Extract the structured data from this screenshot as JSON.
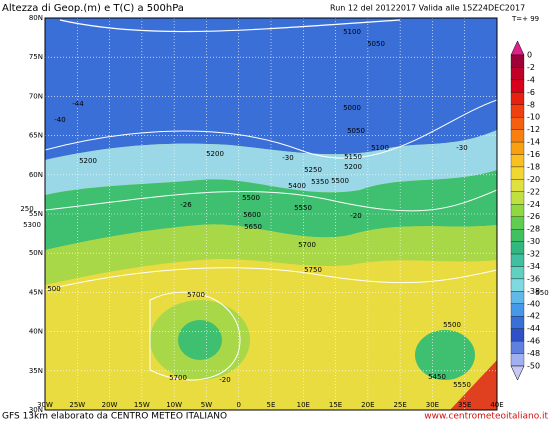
{
  "header": {
    "title": "Altezza di Geop.(m) e T(C) a 500hPa",
    "run": "Run 12 del 20122017  Valida alle 15Z24DEC2017",
    "step": "T=+ 99"
  },
  "map": {
    "lat_labels": [
      "80N",
      "75N",
      "70N",
      "65N",
      "60N",
      "55N",
      "50N",
      "45N",
      "40N",
      "35N",
      "30N"
    ],
    "lon_labels": [
      "30W",
      "25W",
      "20W",
      "15W",
      "10W",
      "5W",
      "0",
      "5E",
      "10E",
      "15E",
      "20E",
      "25E",
      "30E",
      "35E",
      "40E"
    ],
    "contour_labels": [
      "5100",
      "5050",
      "5000",
      "5050",
      "5100",
      "5150",
      "5200",
      "5200",
      "5200",
      "5250",
      "5400",
      "5350",
      "5500",
      "5500",
      "5550",
      "5600",
      "5650",
      "5700",
      "5750",
      "5300",
      "250",
      "500",
      "5700",
      "5700",
      "5500",
      "5450",
      "5550",
      "550",
      "-44",
      "-40",
      "-30",
      "-26",
      "-20",
      "-30",
      "-20"
    ]
  },
  "colorbar": {
    "labels": [
      0,
      -2,
      -4,
      -6,
      -8,
      -10,
      -12,
      -14,
      -16,
      -18,
      -20,
      -22,
      -24,
      -26,
      -28,
      -30,
      -32,
      -34,
      -36,
      -38,
      -40,
      -42,
      -44,
      -46,
      -48,
      -50
    ]
  },
  "footer": {
    "left": "GFS 13km elaborato da CENTRO METEO ITALIANO",
    "right": "www.centrometeoitaliano.it"
  }
}
